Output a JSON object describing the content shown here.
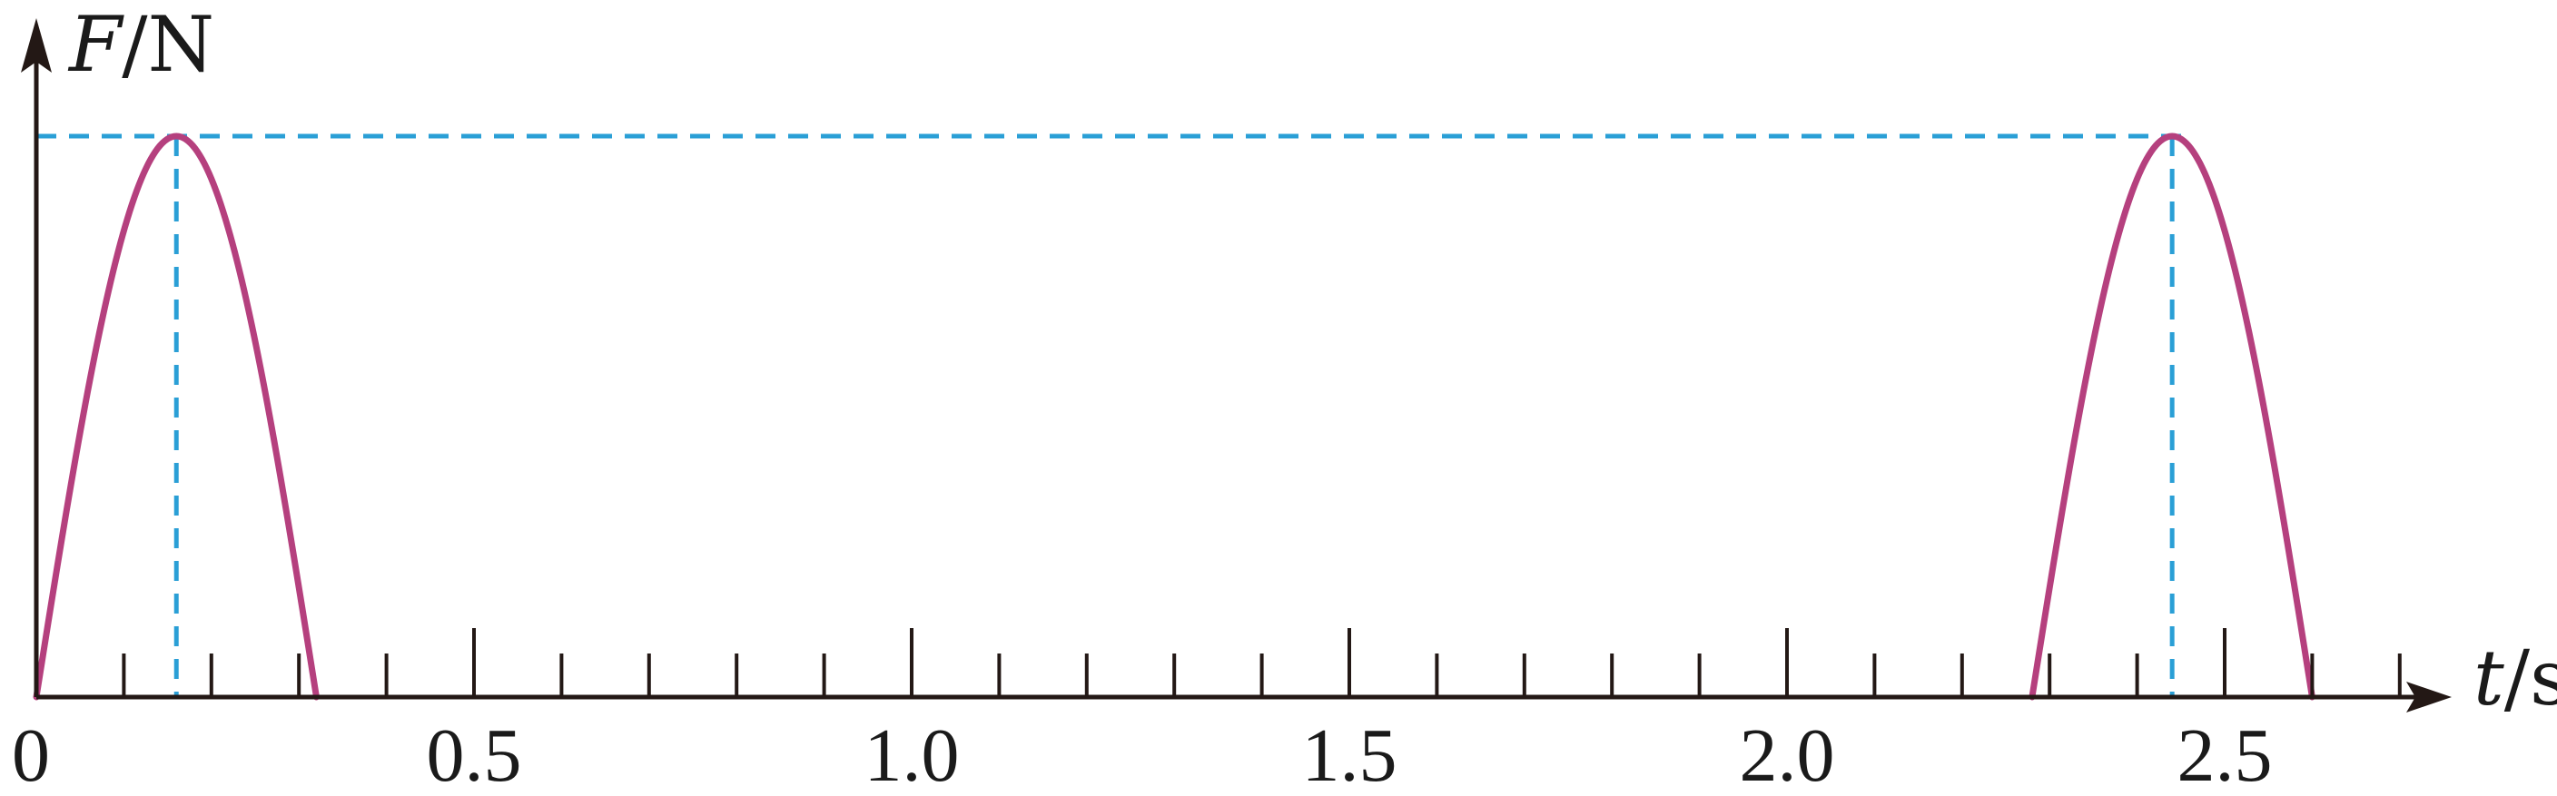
{
  "chart_data": {
    "type": "line",
    "title": "",
    "ylabel": {
      "symbol": "F",
      "unit": "N"
    },
    "xlabel": {
      "symbol": "t",
      "unit": "s"
    },
    "origin_label": "0",
    "xlim": [
      0,
      2.78
    ],
    "ylim": [
      0,
      1.0
    ],
    "x_tick_step": 0.1,
    "x_tick_labels": [
      {
        "x": 0.5,
        "label": "0.5"
      },
      {
        "x": 1.0,
        "label": "1.0"
      },
      {
        "x": 1.5,
        "label": "1.5"
      },
      {
        "x": 2.0,
        "label": "2.0"
      },
      {
        "x": 2.5,
        "label": "2.5"
      }
    ],
    "grid": false,
    "series": [
      {
        "shape": "half-sine pulse",
        "x_start": 0.0,
        "x_peak": 0.16,
        "x_end": 0.32,
        "peak_value": 1.0,
        "color": "#b5407e"
      },
      {
        "shape": "half-sine pulse",
        "x_start": 2.28,
        "x_peak": 2.44,
        "x_end": 2.6,
        "peak_value": 1.0,
        "color": "#b5407e"
      }
    ],
    "reference_lines": {
      "color": "#2a9fd6",
      "style": "dashed",
      "horizontal_y": 1.0,
      "vertical_x": [
        0.16,
        2.44
      ]
    },
    "axis_color": "#231815"
  }
}
